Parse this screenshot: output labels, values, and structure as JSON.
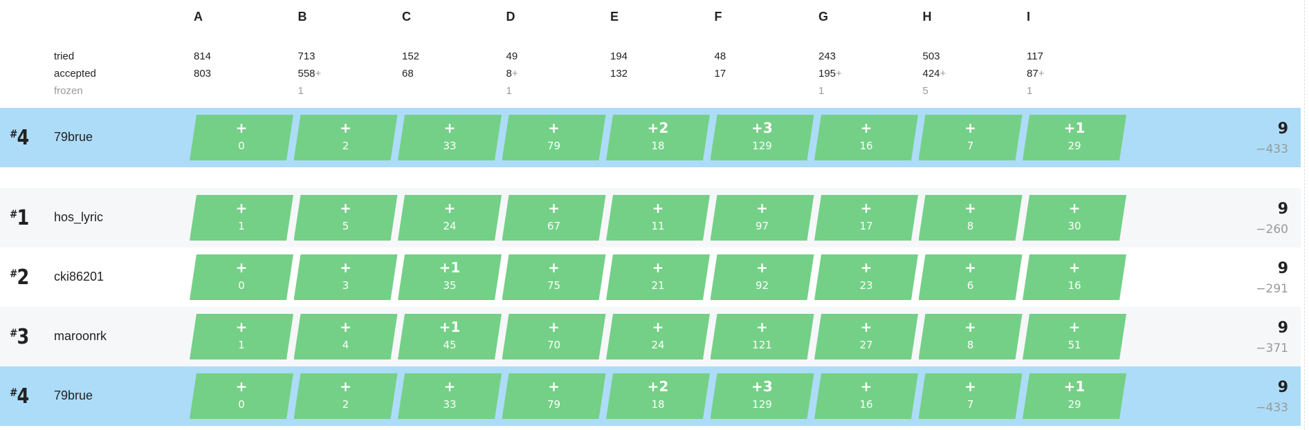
{
  "problems": [
    "A",
    "B",
    "C",
    "D",
    "E",
    "F",
    "G",
    "H",
    "I"
  ],
  "stats": {
    "labels": {
      "tried": "tried",
      "accepted": "accepted",
      "frozen": "frozen"
    },
    "tried": [
      "814",
      "713",
      "152",
      "49",
      "194",
      "48",
      "243",
      "503",
      "117"
    ],
    "accepted": [
      "803",
      "558",
      "68",
      "8",
      "132",
      "17",
      "195",
      "424",
      "87"
    ],
    "accepted_plus": [
      "",
      "+",
      "",
      "+",
      "",
      "",
      "+",
      "+",
      "+"
    ],
    "frozen": [
      "",
      "1",
      "",
      "1",
      "",
      "",
      "1",
      "5",
      "1"
    ]
  },
  "pinned_row": {
    "rank": "4",
    "name": "79brue",
    "cells": [
      [
        "+",
        "0"
      ],
      [
        "+",
        "2"
      ],
      [
        "+",
        "33"
      ],
      [
        "+",
        "79"
      ],
      [
        "+2",
        "18"
      ],
      [
        "+3",
        "129"
      ],
      [
        "+",
        "16"
      ],
      [
        "+",
        "7"
      ],
      [
        "+1",
        "29"
      ]
    ],
    "score": "9",
    "penalty": "−433"
  },
  "rows": [
    {
      "rank": "1",
      "name": "hos_lyric",
      "cells": [
        [
          "+",
          "1"
        ],
        [
          "+",
          "5"
        ],
        [
          "+",
          "24"
        ],
        [
          "+",
          "67"
        ],
        [
          "+",
          "11"
        ],
        [
          "+",
          "97"
        ],
        [
          "+",
          "17"
        ],
        [
          "+",
          "8"
        ],
        [
          "+",
          "30"
        ]
      ],
      "score": "9",
      "penalty": "−260"
    },
    {
      "rank": "2",
      "name": "cki86201",
      "cells": [
        [
          "+",
          "0"
        ],
        [
          "+",
          "3"
        ],
        [
          "+1",
          "35"
        ],
        [
          "+",
          "75"
        ],
        [
          "+",
          "21"
        ],
        [
          "+",
          "92"
        ],
        [
          "+",
          "23"
        ],
        [
          "+",
          "6"
        ],
        [
          "+",
          "16"
        ]
      ],
      "score": "9",
      "penalty": "−291"
    },
    {
      "rank": "3",
      "name": "maroonrk",
      "cells": [
        [
          "+",
          "1"
        ],
        [
          "+",
          "4"
        ],
        [
          "+1",
          "45"
        ],
        [
          "+",
          "70"
        ],
        [
          "+",
          "24"
        ],
        [
          "+",
          "121"
        ],
        [
          "+",
          "27"
        ],
        [
          "+",
          "8"
        ],
        [
          "+",
          "51"
        ]
      ],
      "score": "9",
      "penalty": "−371"
    },
    {
      "rank": "4",
      "name": "79brue",
      "cells": [
        [
          "+",
          "0"
        ],
        [
          "+",
          "2"
        ],
        [
          "+",
          "33"
        ],
        [
          "+",
          "79"
        ],
        [
          "+2",
          "18"
        ],
        [
          "+3",
          "129"
        ],
        [
          "+",
          "16"
        ],
        [
          "+",
          "7"
        ],
        [
          "+1",
          "29"
        ]
      ],
      "score": "9",
      "penalty": "−433"
    }
  ],
  "colors": {
    "accepted": "#74d086",
    "highlight": "#addcf8",
    "alt_row": "#f6f7f9"
  }
}
